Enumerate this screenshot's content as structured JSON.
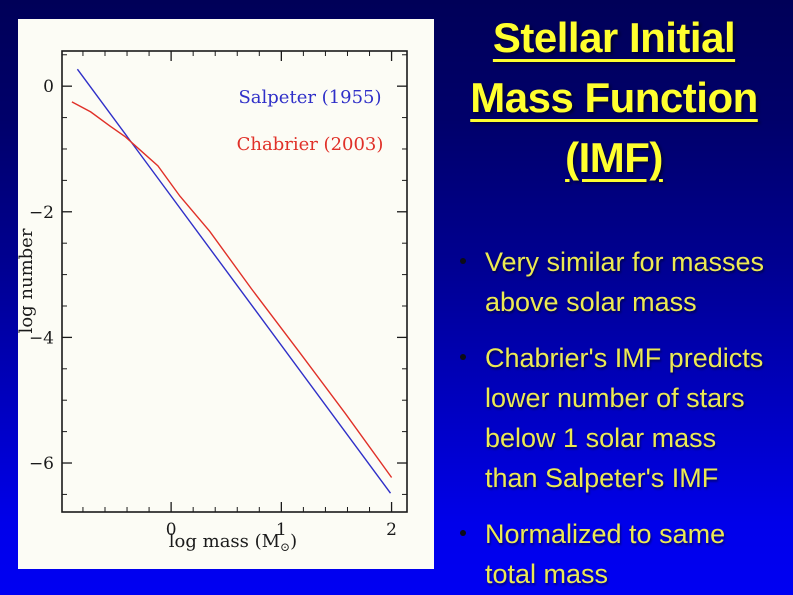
{
  "slide": {
    "title_lines": [
      "Stellar Initial",
      "Mass Function",
      "(IMF)"
    ],
    "bullets": [
      {
        "lines": [
          "Very similar for masses",
          "above solar mass"
        ]
      },
      {
        "lines": [
          "Chabrier's IMF predicts",
          "lower number of stars",
          "below 1 solar mass",
          "than Salpeter's IMF"
        ]
      },
      {
        "lines": [
          "Normalized to same",
          "total mass"
        ]
      }
    ],
    "colors": {
      "title_text": "#ffff2f",
      "bullet_text": "#ecea52",
      "background_top": "#000058",
      "background_bottom": "#0000f2",
      "salpeter_line": "#2f2fc8",
      "chabrier_line": "#e03028"
    }
  },
  "chart_data": {
    "type": "line",
    "title": "",
    "xlabel": "log mass (M⊙)",
    "ylabel": "log number",
    "xlim": [
      -0.99,
      2.14
    ],
    "ylim": [
      -6.78,
      0.56
    ],
    "x_major_ticks": [
      0,
      1,
      2
    ],
    "y_major_ticks": [
      0,
      -2,
      -4,
      -6
    ],
    "x_minor_step": 0.2,
    "y_minor_step": 0.5,
    "grid": false,
    "legend_position": "upper right inside",
    "legend": [
      {
        "label": "Salpeter (1955)",
        "color": "#2f2fc8"
      },
      {
        "label": "Chabrier (2003)",
        "color": "#e03028"
      }
    ],
    "series": [
      {
        "name": "Salpeter (1955)",
        "color": "#2f2fc8",
        "points": [
          [
            -0.85,
            0.27
          ],
          [
            1.99,
            -6.48
          ]
        ]
      },
      {
        "name": "Chabrier (2003)",
        "color": "#e03028",
        "points": [
          [
            -0.9,
            -0.25
          ],
          [
            -0.73,
            -0.41
          ],
          [
            -0.55,
            -0.64
          ],
          [
            -0.42,
            -0.8
          ],
          [
            -0.28,
            -1.02
          ],
          [
            -0.12,
            -1.27
          ],
          [
            0.08,
            -1.75
          ],
          [
            0.35,
            -2.31
          ],
          [
            0.73,
            -3.23
          ],
          [
            1.17,
            -4.25
          ],
          [
            1.58,
            -5.21
          ],
          [
            2.0,
            -6.23
          ]
        ]
      }
    ]
  }
}
